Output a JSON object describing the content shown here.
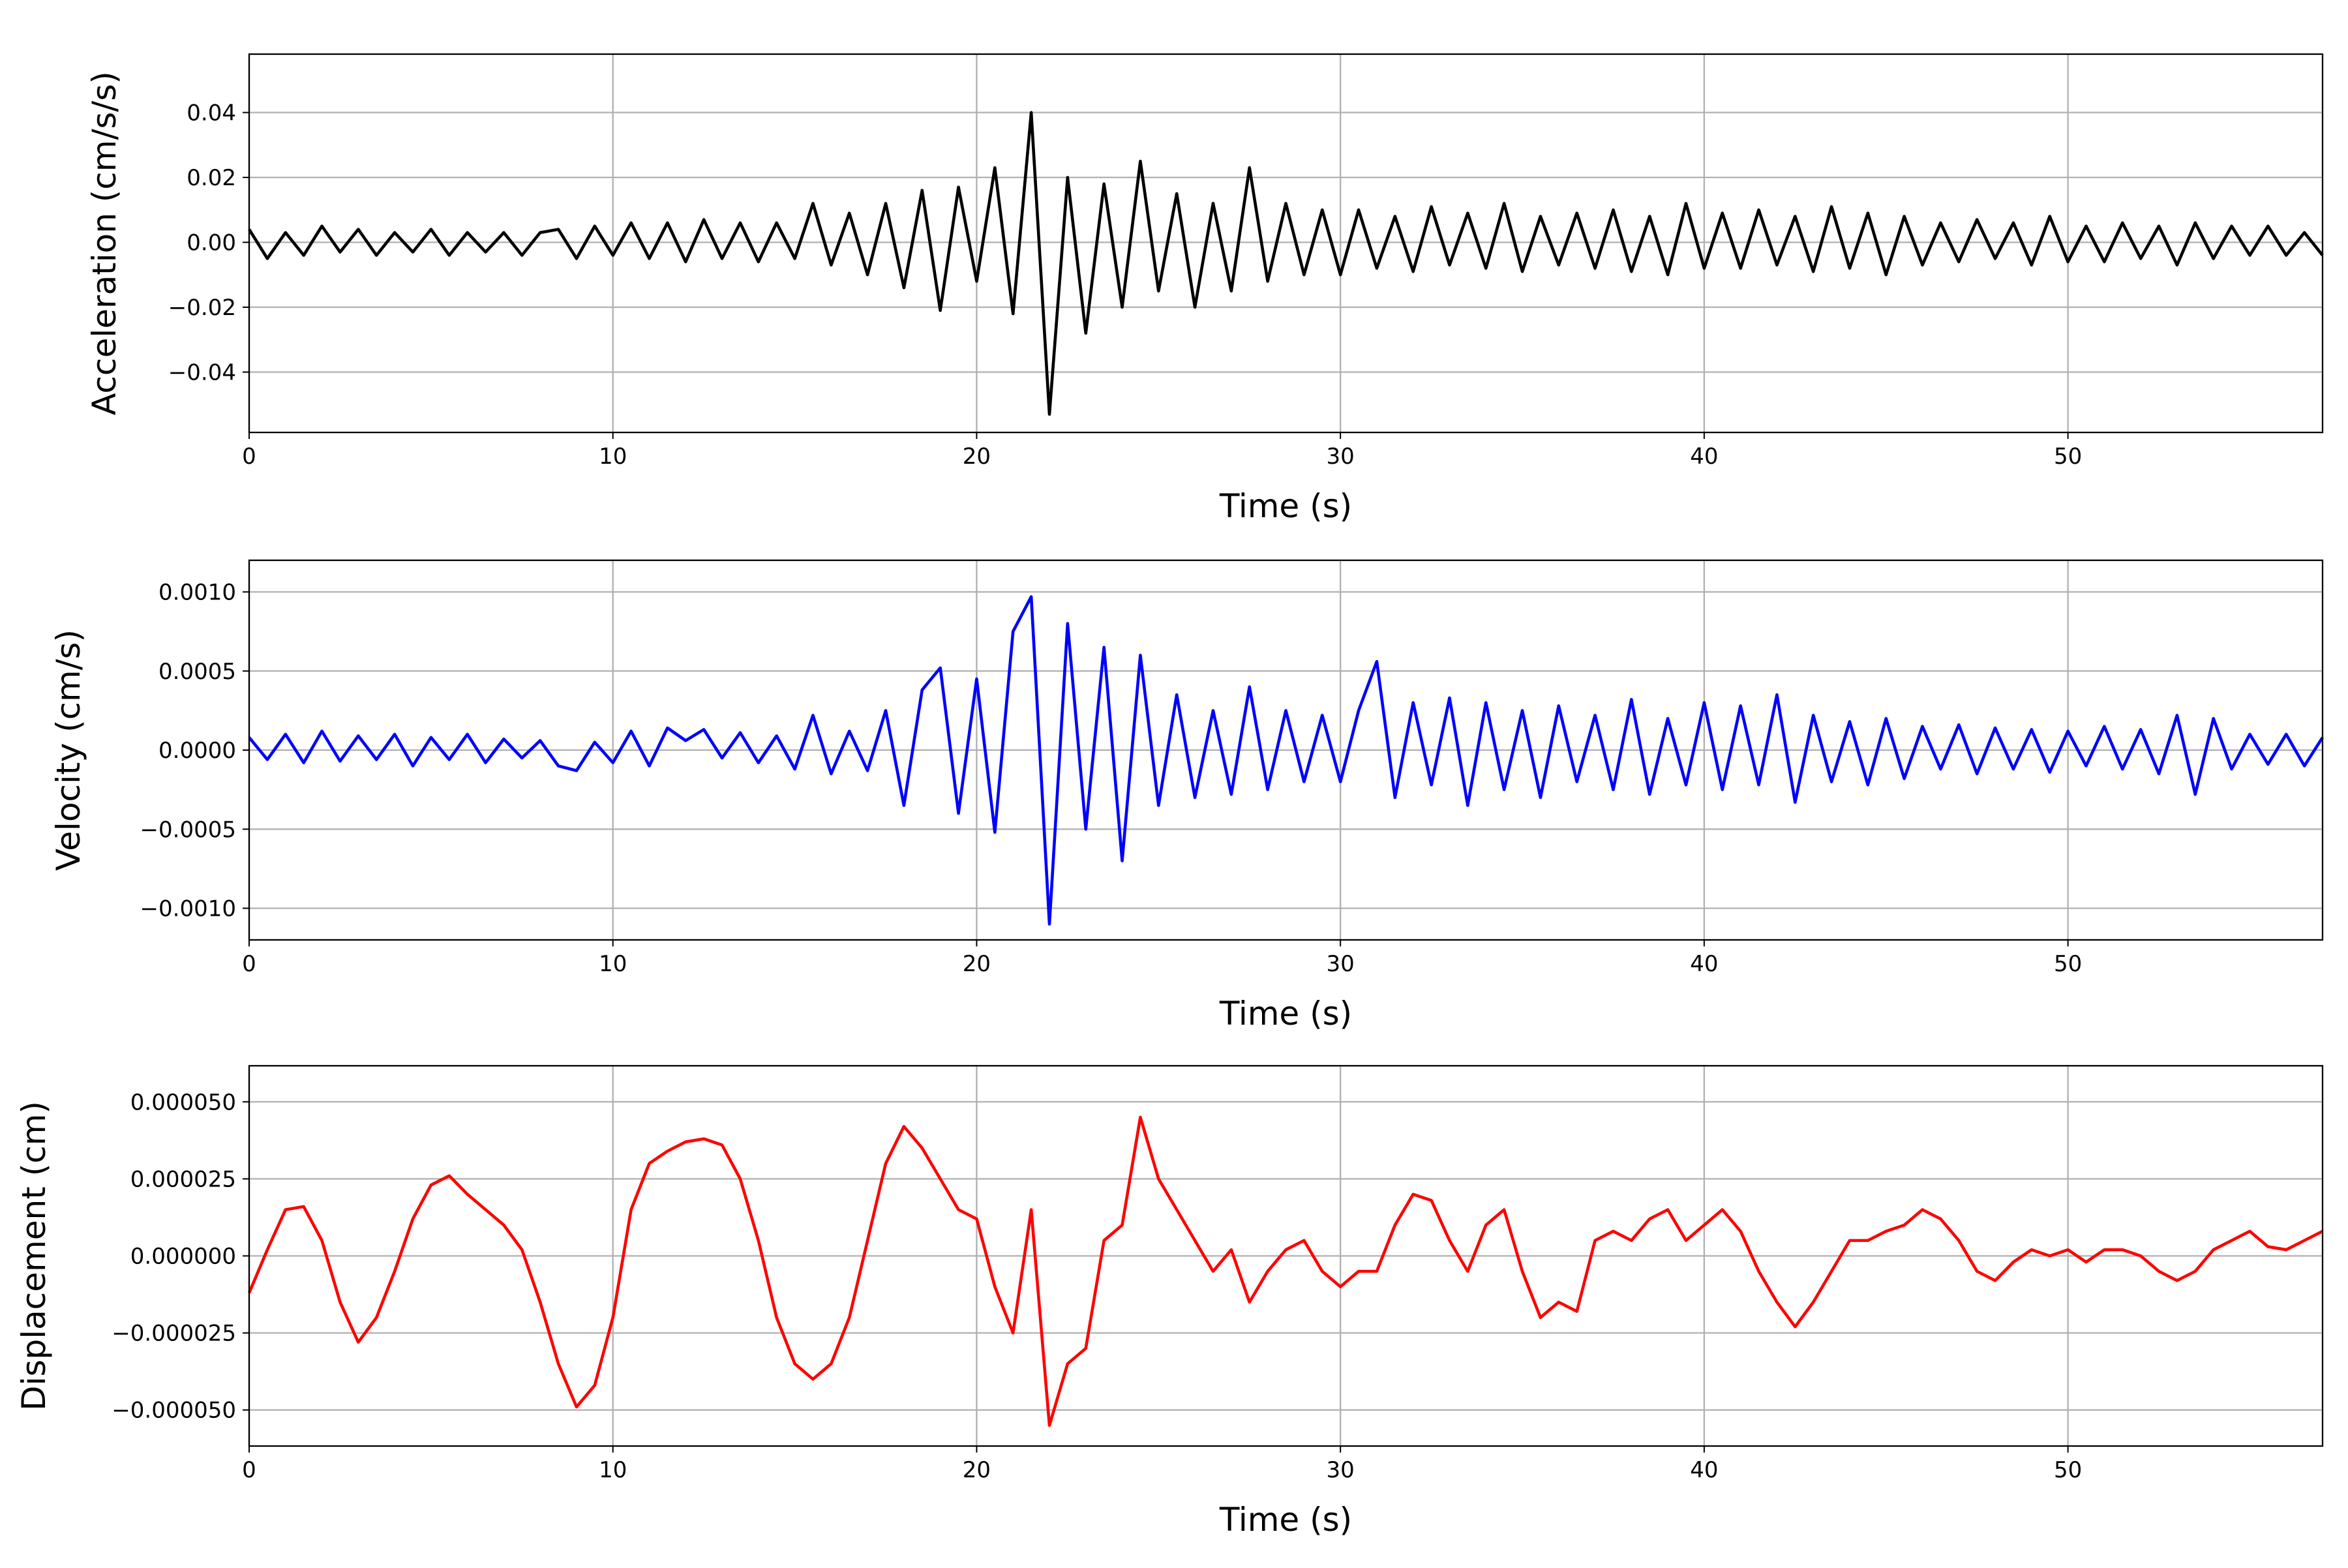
{
  "chart_data": [
    {
      "type": "line",
      "x_label": "Time (s)",
      "y_label": "Acceleration (cm/s/s)",
      "color": "#000000",
      "grid": true,
      "xlim": [
        0,
        57
      ],
      "xticks": [
        0,
        10,
        20,
        30,
        40,
        50
      ],
      "ylim": [
        -0.0586,
        0.058
      ],
      "yticks": [
        {
          "value": -0.04,
          "label": "−0.04"
        },
        {
          "value": -0.02,
          "label": "−0.02"
        },
        {
          "value": 0,
          "label": "0.00"
        },
        0.02,
        0.04
      ],
      "x": [
        0,
        0.5,
        1,
        1.5,
        2,
        2.5,
        3,
        3.5,
        4,
        4.5,
        5,
        5.5,
        6,
        6.5,
        7,
        7.5,
        8,
        8.5,
        9,
        9.5,
        10,
        10.5,
        11,
        11.5,
        12,
        12.5,
        13,
        13.5,
        14,
        14.5,
        15,
        15.5,
        16,
        16.5,
        17,
        17.5,
        18,
        18.5,
        19,
        19.5,
        20,
        20.5,
        21,
        21.5,
        22,
        22.5,
        23,
        23.5,
        24,
        24.5,
        25,
        25.5,
        26,
        26.5,
        27,
        27.5,
        28,
        28.5,
        29,
        29.5,
        30,
        30.5,
        31,
        31.5,
        32,
        32.5,
        33,
        33.5,
        34,
        34.5,
        35,
        35.5,
        36,
        36.5,
        37,
        37.5,
        38,
        38.5,
        39,
        39.5,
        40,
        40.5,
        41,
        41.5,
        42,
        42.5,
        43,
        43.5,
        44,
        44.5,
        45,
        45.5,
        46,
        46.5,
        47,
        47.5,
        48,
        48.5,
        49,
        49.5,
        50,
        50.5,
        51,
        51.5,
        52,
        52.5,
        53,
        53.5,
        54,
        54.5,
        55,
        55.5,
        56,
        56.5,
        57
      ],
      "values": [
        0.004,
        -0.005,
        0.003,
        -0.004,
        0.005,
        -0.003,
        0.004,
        -0.004,
        0.003,
        -0.003,
        0.004,
        -0.004,
        0.003,
        -0.003,
        0.003,
        -0.004,
        0.003,
        0.004,
        -0.005,
        0.005,
        -0.004,
        0.006,
        -0.005,
        0.006,
        -0.006,
        0.007,
        -0.005,
        0.006,
        -0.006,
        0.006,
        -0.005,
        0.012,
        -0.007,
        0.009,
        -0.01,
        0.012,
        -0.014,
        0.016,
        -0.021,
        0.017,
        -0.012,
        0.023,
        -0.022,
        0.04,
        -0.053,
        0.02,
        -0.028,
        0.018,
        -0.02,
        0.025,
        -0.015,
        0.015,
        -0.02,
        0.012,
        -0.015,
        0.023,
        -0.012,
        0.012,
        -0.01,
        0.01,
        -0.01,
        0.01,
        -0.008,
        0.008,
        -0.009,
        0.011,
        -0.007,
        0.009,
        -0.008,
        0.012,
        -0.009,
        0.008,
        -0.007,
        0.009,
        -0.008,
        0.01,
        -0.009,
        0.008,
        -0.01,
        0.012,
        -0.008,
        0.009,
        -0.008,
        0.01,
        -0.007,
        0.008,
        -0.009,
        0.011,
        -0.008,
        0.009,
        -0.01,
        0.008,
        -0.007,
        0.006,
        -0.006,
        0.007,
        -0.005,
        0.006,
        -0.007,
        0.008,
        -0.006,
        0.005,
        -0.006,
        0.006,
        -0.005,
        0.005,
        -0.007,
        0.006,
        -0.005,
        0.005,
        -0.004,
        0.005,
        -0.004,
        0.003,
        -0.004
      ]
    },
    {
      "type": "line",
      "x_label": "Time (s)",
      "y_label": "Velocity (cm/s)",
      "color": "#0000ff",
      "grid": true,
      "xlim": [
        0,
        57
      ],
      "xticks": [
        0,
        10,
        20,
        30,
        40,
        50
      ],
      "ylim": [
        -0.0012,
        0.0012
      ],
      "yticks": [
        {
          "value": -0.001,
          "label": "−0.0010"
        },
        {
          "value": -0.0005,
          "label": "−0.0005"
        },
        {
          "value": 0,
          "label": "0.0000"
        },
        0.0005,
        {
          "value": 0.001,
          "label": "0.0010"
        }
      ],
      "x": [
        0,
        0.5,
        1,
        1.5,
        2,
        2.5,
        3,
        3.5,
        4,
        4.5,
        5,
        5.5,
        6,
        6.5,
        7,
        7.5,
        8,
        8.5,
        9,
        9.5,
        10,
        10.5,
        11,
        11.5,
        12,
        12.5,
        13,
        13.5,
        14,
        14.5,
        15,
        15.5,
        16,
        16.5,
        17,
        17.5,
        18,
        18.5,
        19,
        19.5,
        20,
        20.5,
        21,
        21.5,
        22,
        22.5,
        23,
        23.5,
        24,
        24.5,
        25,
        25.5,
        26,
        26.5,
        27,
        27.5,
        28,
        28.5,
        29,
        29.5,
        30,
        30.5,
        31,
        31.5,
        32,
        32.5,
        33,
        33.5,
        34,
        34.5,
        35,
        35.5,
        36,
        36.5,
        37,
        37.5,
        38,
        38.5,
        39,
        39.5,
        40,
        40.5,
        41,
        41.5,
        42,
        42.5,
        43,
        43.5,
        44,
        44.5,
        45,
        45.5,
        46,
        46.5,
        47,
        47.5,
        48,
        48.5,
        49,
        49.5,
        50,
        50.5,
        51,
        51.5,
        52,
        52.5,
        53,
        53.5,
        54,
        54.5,
        55,
        55.5,
        56,
        56.5,
        57
      ],
      "values": [
        8e-05,
        -6e-05,
        0.0001,
        -8e-05,
        0.00012,
        -7e-05,
        9e-05,
        -6e-05,
        0.0001,
        -0.0001,
        8e-05,
        -6e-05,
        0.0001,
        -8e-05,
        7e-05,
        -5e-05,
        6e-05,
        -0.0001,
        -0.00013,
        5e-05,
        -8e-05,
        0.00012,
        -0.0001,
        0.00014,
        6e-05,
        0.00013,
        -5e-05,
        0.00011,
        -8e-05,
        9e-05,
        -0.00012,
        0.00022,
        -0.00015,
        0.00012,
        -0.00013,
        0.00025,
        -0.00035,
        0.00038,
        0.00052,
        -0.0004,
        0.00045,
        -0.00052,
        0.00075,
        0.00097,
        -0.0011,
        0.0008,
        -0.0005,
        0.00065,
        -0.0007,
        0.0006,
        -0.00035,
        0.00035,
        -0.0003,
        0.00025,
        -0.00028,
        0.0004,
        -0.00025,
        0.00025,
        -0.0002,
        0.00022,
        -0.0002,
        0.00025,
        0.00056,
        -0.0003,
        0.0003,
        -0.00022,
        0.00033,
        -0.00035,
        0.0003,
        -0.00025,
        0.00025,
        -0.0003,
        0.00028,
        -0.0002,
        0.00022,
        -0.00025,
        0.00032,
        -0.00028,
        0.0002,
        -0.00022,
        0.0003,
        -0.00025,
        0.00028,
        -0.00022,
        0.00035,
        -0.00033,
        0.00022,
        -0.0002,
        0.00018,
        -0.00022,
        0.0002,
        -0.00018,
        0.00015,
        -0.00012,
        0.00016,
        -0.00015,
        0.00014,
        -0.00012,
        0.00013,
        -0.00014,
        0.00012,
        -0.0001,
        0.00015,
        -0.00012,
        0.00013,
        -0.00015,
        0.00022,
        -0.00028,
        0.0002,
        -0.00012,
        0.0001,
        -9e-05,
        0.0001,
        -0.0001,
        8e-05
      ]
    },
    {
      "type": "line",
      "x_label": "Time (s)",
      "y_label": "Displacement (cm)",
      "color": "#ff0000",
      "grid": true,
      "xlim": [
        0,
        57
      ],
      "xticks": [
        0,
        10,
        20,
        30,
        40,
        50
      ],
      "ylim": [
        -6.17e-05,
        6.17e-05
      ],
      "yticks": [
        {
          "value": -5e-05,
          "label": "−0.000050"
        },
        {
          "value": -2.5e-05,
          "label": "−0.000025"
        },
        {
          "value": 0,
          "label": "0.000000"
        },
        {
          "value": 2.5e-05,
          "label": "0.000025"
        },
        {
          "value": 5e-05,
          "label": "0.000050"
        }
      ],
      "x": [
        0,
        0.5,
        1,
        1.5,
        2,
        2.5,
        3,
        3.5,
        4,
        4.5,
        5,
        5.5,
        6,
        6.5,
        7,
        7.5,
        8,
        8.5,
        9,
        9.5,
        10,
        10.5,
        11,
        11.5,
        12,
        12.5,
        13,
        13.5,
        14,
        14.5,
        15,
        15.5,
        16,
        16.5,
        17,
        17.5,
        18,
        18.5,
        19,
        19.5,
        20,
        20.5,
        21,
        21.5,
        22,
        22.5,
        23,
        23.5,
        24,
        24.5,
        25,
        25.5,
        26,
        26.5,
        27,
        27.5,
        28,
        28.5,
        29,
        29.5,
        30,
        30.5,
        31,
        31.5,
        32,
        32.5,
        33,
        33.5,
        34,
        34.5,
        35,
        35.5,
        36,
        36.5,
        37,
        37.5,
        38,
        38.5,
        39,
        39.5,
        40,
        40.5,
        41,
        41.5,
        42,
        42.5,
        43,
        43.5,
        44,
        44.5,
        45,
        45.5,
        46,
        46.5,
        47,
        47.5,
        48,
        48.5,
        49,
        49.5,
        50,
        50.5,
        51,
        51.5,
        52,
        52.5,
        53,
        53.5,
        54,
        54.5,
        55,
        55.5,
        56,
        56.5,
        57
      ],
      "values": [
        -1.2e-05,
        2e-06,
        1.5e-05,
        1.6e-05,
        5e-06,
        -1.5e-05,
        -2.8e-05,
        -2e-05,
        -5e-06,
        1.2e-05,
        2.3e-05,
        2.6e-05,
        2e-05,
        1.5e-05,
        1e-05,
        2e-06,
        -1.5e-05,
        -3.5e-05,
        -4.9e-05,
        -4.2e-05,
        -2e-05,
        1.5e-05,
        3e-05,
        3.4e-05,
        3.7e-05,
        3.8e-05,
        3.6e-05,
        2.5e-05,
        5e-06,
        -2e-05,
        -3.5e-05,
        -4e-05,
        -3.5e-05,
        -2e-05,
        5e-06,
        3e-05,
        4.2e-05,
        3.5e-05,
        2.5e-05,
        1.5e-05,
        1.2e-05,
        -1e-05,
        -2.5e-05,
        1.5e-05,
        -5.5e-05,
        -3.5e-05,
        -3e-05,
        5e-06,
        1e-05,
        4.5e-05,
        2.5e-05,
        1.5e-05,
        5e-06,
        -5e-06,
        2e-06,
        -1.5e-05,
        -5e-06,
        2e-06,
        5e-06,
        -5e-06,
        -1e-05,
        -5e-06,
        -5e-06,
        1e-05,
        2e-05,
        1.8e-05,
        5e-06,
        -5e-06,
        1e-05,
        1.5e-05,
        -5e-06,
        -2e-05,
        -1.5e-05,
        -1.8e-05,
        5e-06,
        8e-06,
        5e-06,
        1.2e-05,
        1.5e-05,
        5e-06,
        1e-05,
        1.5e-05,
        8e-06,
        -5e-06,
        -1.5e-05,
        -2.3e-05,
        -1.5e-05,
        -5e-06,
        5e-06,
        5e-06,
        8e-06,
        1e-05,
        1.5e-05,
        1.2e-05,
        5e-06,
        -5e-06,
        -8e-06,
        -2e-06,
        2e-06,
        0,
        2e-06,
        -2e-06,
        2e-06,
        2e-06,
        0,
        -5e-06,
        -8e-06,
        -5e-06,
        2e-06,
        5e-06,
        8e-06,
        3e-06,
        2e-06,
        5e-06,
        8e-06
      ]
    }
  ]
}
